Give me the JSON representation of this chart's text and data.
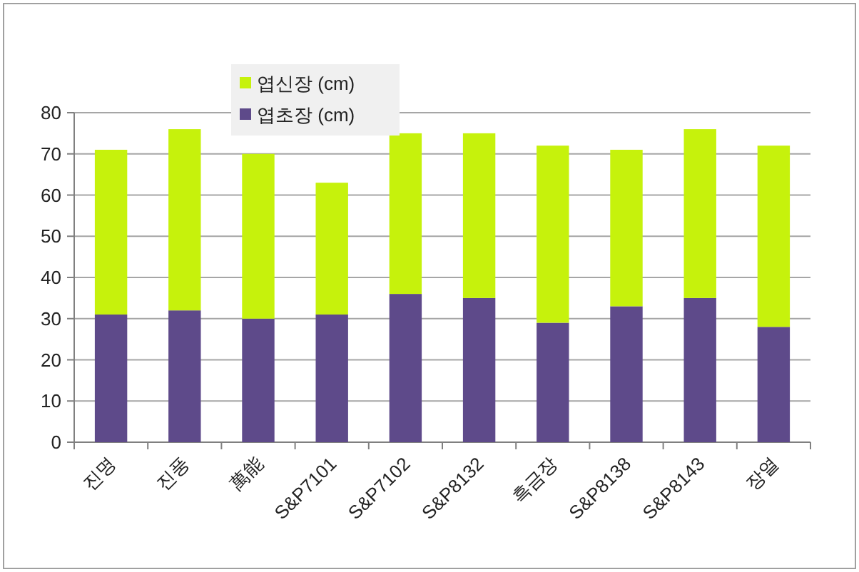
{
  "chart_data": {
    "type": "bar",
    "stacked": true,
    "categories": [
      "진명",
      "진풍",
      "萬能",
      "S&P7101",
      "S&P7102",
      "S&P8132",
      "흑금장",
      "S&P8138",
      "S&P8143",
      "장열"
    ],
    "series": [
      {
        "name": "엽초장 (cm)",
        "color": "#5e4a8a",
        "values": [
          31,
          32,
          30,
          31,
          36,
          35,
          29,
          33,
          35,
          28
        ]
      },
      {
        "name": "엽신장 (cm)",
        "color": "#c6f20c",
        "values": [
          40,
          44,
          40,
          32,
          39,
          40,
          43,
          38,
          41,
          44
        ]
      }
    ],
    "ylim": [
      0,
      80
    ],
    "yticks": [
      0,
      10,
      20,
      30,
      40,
      50,
      60,
      70,
      80
    ],
    "grid": "y",
    "legend": "top left"
  }
}
